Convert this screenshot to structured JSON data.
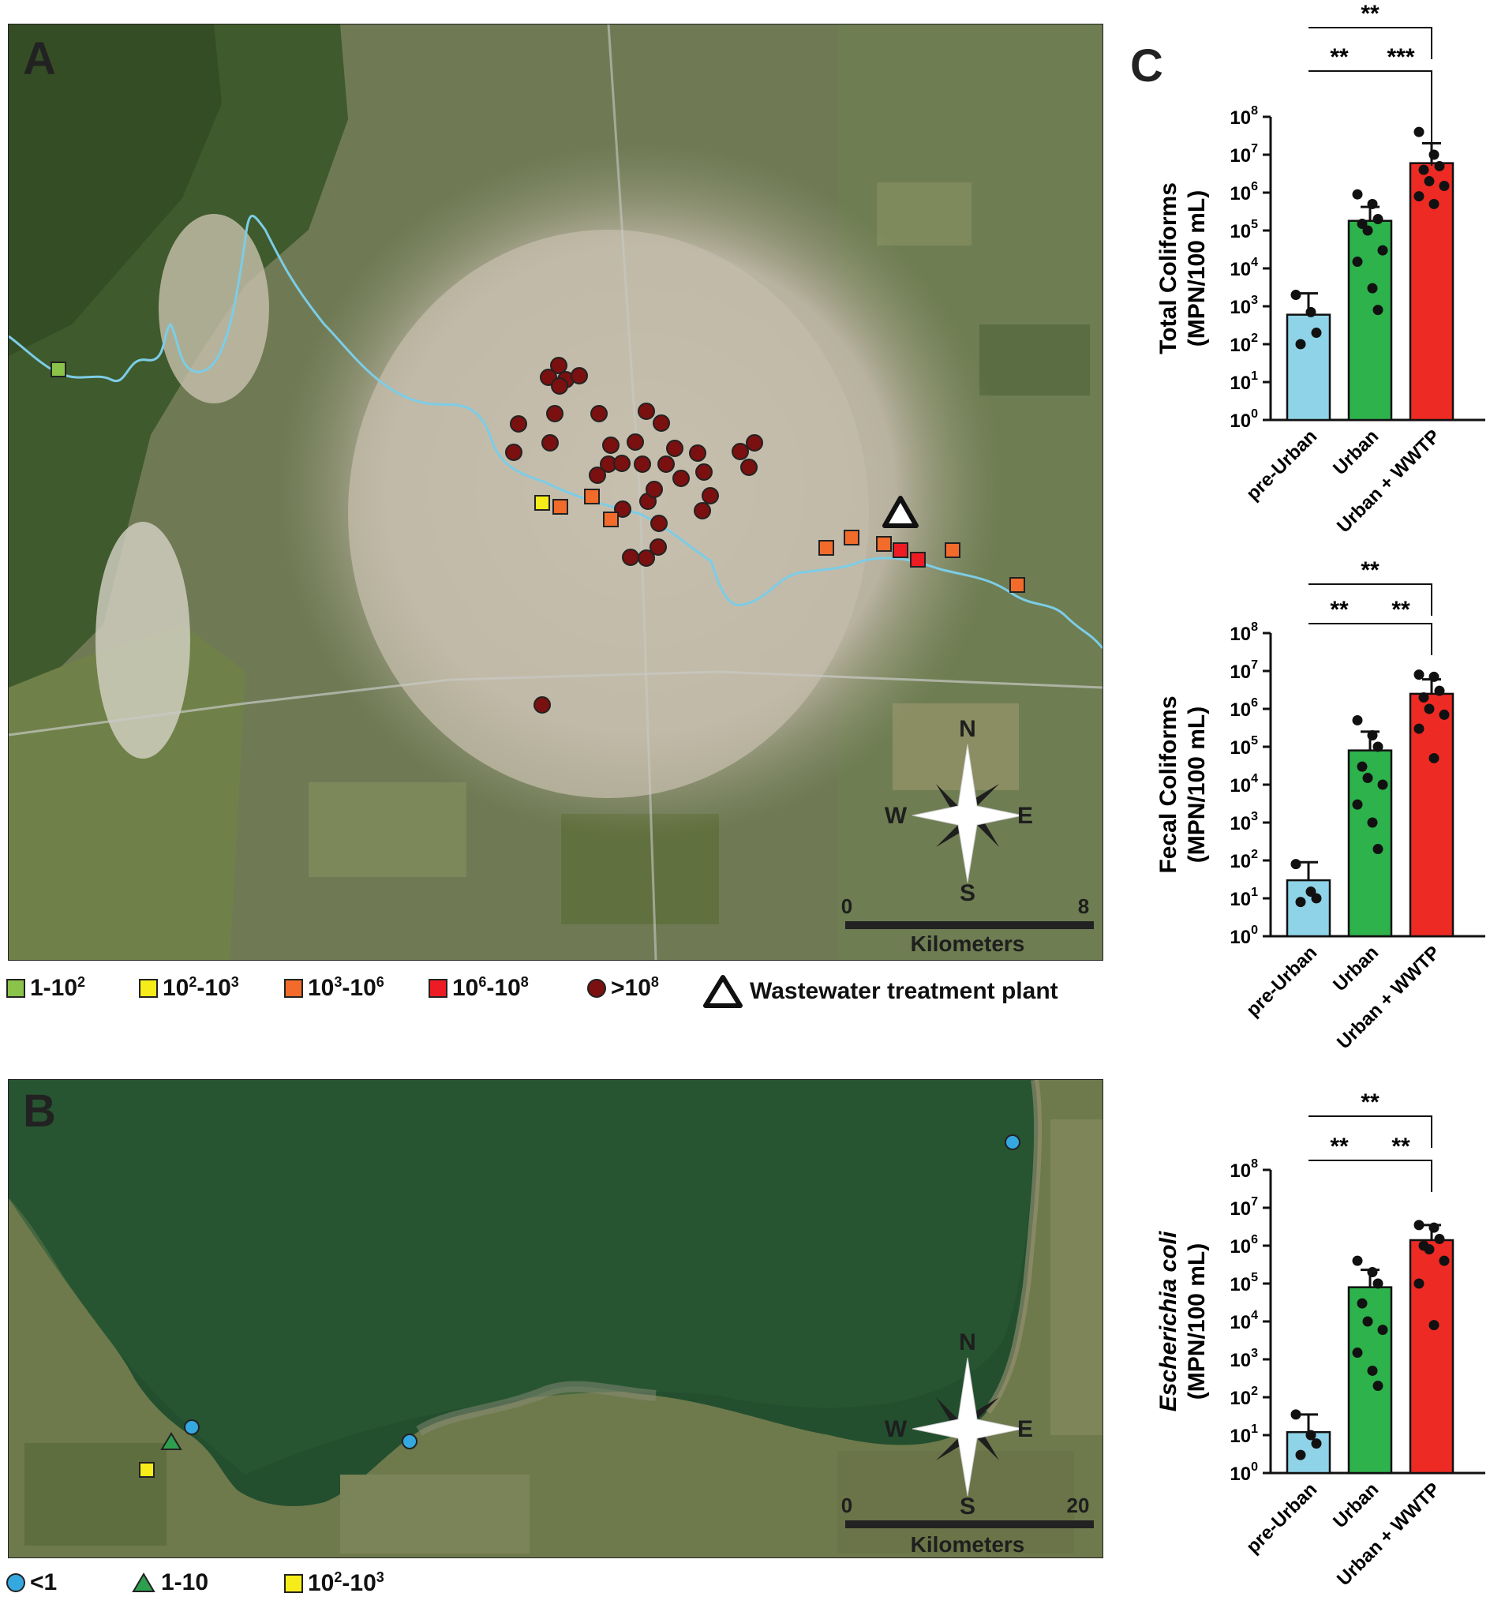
{
  "panels": {
    "a": {
      "letter": "A"
    },
    "b": {
      "letter": "B"
    },
    "c": {
      "letter": "C"
    }
  },
  "map_a": {
    "compass": {
      "n": "N",
      "s": "S",
      "e": "E",
      "w": "W"
    },
    "scale": {
      "start": "0",
      "end": "8",
      "unit": "Kilometers"
    },
    "river_color": "#7ccde6"
  },
  "map_b": {
    "compass": {
      "n": "N",
      "s": "S",
      "e": "E",
      "w": "W"
    },
    "scale": {
      "start": "0",
      "end": "20",
      "unit": "Kilometers"
    }
  },
  "legend_a": {
    "items": [
      {
        "symbol": "square",
        "color": "#8bc34a",
        "base": "1-10",
        "sup": "2",
        "tail": ""
      },
      {
        "symbol": "square",
        "color": "#f6ec1a",
        "base": "10",
        "sup": "2",
        "tail": "-10",
        "sup2": "3"
      },
      {
        "symbol": "square",
        "color": "#f26b2a",
        "base": "10",
        "sup": "3",
        "tail": "-10",
        "sup2": "6"
      },
      {
        "symbol": "square",
        "color": "#ed1c24",
        "base": "10",
        "sup": "6",
        "tail": "-10",
        "sup2": "8"
      },
      {
        "symbol": "circle",
        "color": "#7a1010",
        "base": ">10",
        "sup": "8",
        "tail": ""
      }
    ],
    "wwtp_label": "Wastewater treatment plant"
  },
  "legend_b": {
    "items": [
      {
        "symbol": "circle",
        "color": "#35a8e0",
        "text": "<1"
      },
      {
        "symbol": "triangle",
        "color": "#2e9e4f",
        "text": "1-10"
      },
      {
        "symbol": "square",
        "color": "#f6ec1a",
        "text": "10",
        "sup": "2",
        "tail": "-10",
        "sup2": "3"
      }
    ]
  },
  "chart_data": [
    {
      "type": "bar",
      "ylabel": "Total Coliforms",
      "ylabel_unit": "(MPN/100 mL)",
      "ylabel_italic": false,
      "y_scale": "log",
      "ylim": [
        1,
        100000000
      ],
      "yticks": [
        "10",
        "10",
        "10",
        "10",
        "10",
        "10",
        "10",
        "10",
        "10"
      ],
      "yticks_exp": [
        "0",
        "1",
        "2",
        "3",
        "4",
        "5",
        "6",
        "7",
        "8"
      ],
      "categories": [
        "pre-Urban",
        "Urban",
        "Urban + WWTP"
      ],
      "colors": [
        "#8fd3e8",
        "#2eb24c",
        "#ee2a24"
      ],
      "values": [
        600,
        180000,
        6000000
      ],
      "errors_upper": [
        2200,
        420000,
        20000000
      ],
      "points": [
        [
          2000,
          700,
          200,
          100
        ],
        [
          900000,
          500000,
          200000,
          150000,
          100000,
          30000,
          15000,
          3000,
          800
        ],
        [
          40000000,
          10000000,
          5000000,
          4000000,
          2000000,
          1500000,
          800000,
          500000
        ]
      ],
      "comparisons": [
        {
          "from": 0,
          "to": 1,
          "label": "**"
        },
        {
          "from": 1,
          "to": 2,
          "label": "***"
        },
        {
          "from": 0,
          "to": 2,
          "label": "**"
        }
      ]
    },
    {
      "type": "bar",
      "ylabel": "Fecal Coliforms",
      "ylabel_unit": "(MPN/100 mL)",
      "ylabel_italic": false,
      "y_scale": "log",
      "ylim": [
        1,
        100000000
      ],
      "yticks": [
        "10",
        "10",
        "10",
        "10",
        "10",
        "10",
        "10",
        "10",
        "10"
      ],
      "yticks_exp": [
        "0",
        "1",
        "2",
        "3",
        "4",
        "5",
        "6",
        "7",
        "8"
      ],
      "categories": [
        "pre-Urban",
        "Urban",
        "Urban + WWTP"
      ],
      "colors": [
        "#8fd3e8",
        "#2eb24c",
        "#ee2a24"
      ],
      "values": [
        30,
        80000,
        2500000
      ],
      "errors_upper": [
        90,
        250000,
        6000000
      ],
      "points": [
        [
          80,
          15,
          10,
          8
        ],
        [
          500000,
          200000,
          100000,
          30000,
          15000,
          10000,
          3000,
          1000,
          200
        ],
        [
          8000000,
          7000000,
          3000000,
          2000000,
          1000000,
          700000,
          300000,
          50000
        ]
      ],
      "comparisons": [
        {
          "from": 0,
          "to": 1,
          "label": "**"
        },
        {
          "from": 1,
          "to": 2,
          "label": "**"
        },
        {
          "from": 0,
          "to": 2,
          "label": "**"
        }
      ]
    },
    {
      "type": "bar",
      "ylabel": "Escherichia coli",
      "ylabel_unit": "(MPN/100 mL)",
      "ylabel_italic": true,
      "y_scale": "log",
      "ylim": [
        1,
        100000000
      ],
      "yticks": [
        "10",
        "10",
        "10",
        "10",
        "10",
        "10",
        "10",
        "10",
        "10"
      ],
      "yticks_exp": [
        "0",
        "1",
        "2",
        "3",
        "4",
        "5",
        "6",
        "7",
        "8"
      ],
      "categories": [
        "pre-Urban",
        "Urban",
        "Urban + WWTP"
      ],
      "colors": [
        "#8fd3e8",
        "#2eb24c",
        "#ee2a24"
      ],
      "values": [
        12,
        80000,
        1400000
      ],
      "errors_upper": [
        35,
        230000,
        3500000
      ],
      "points": [
        [
          35,
          10,
          6,
          3
        ],
        [
          400000,
          200000,
          100000,
          30000,
          10000,
          6000,
          1500,
          500,
          200
        ],
        [
          3500000,
          3000000,
          1500000,
          1000000,
          800000,
          400000,
          100000,
          8000
        ]
      ],
      "comparisons": [
        {
          "from": 0,
          "to": 1,
          "label": "**"
        },
        {
          "from": 1,
          "to": 2,
          "label": "**"
        },
        {
          "from": 0,
          "to": 2,
          "label": "**"
        }
      ]
    }
  ]
}
